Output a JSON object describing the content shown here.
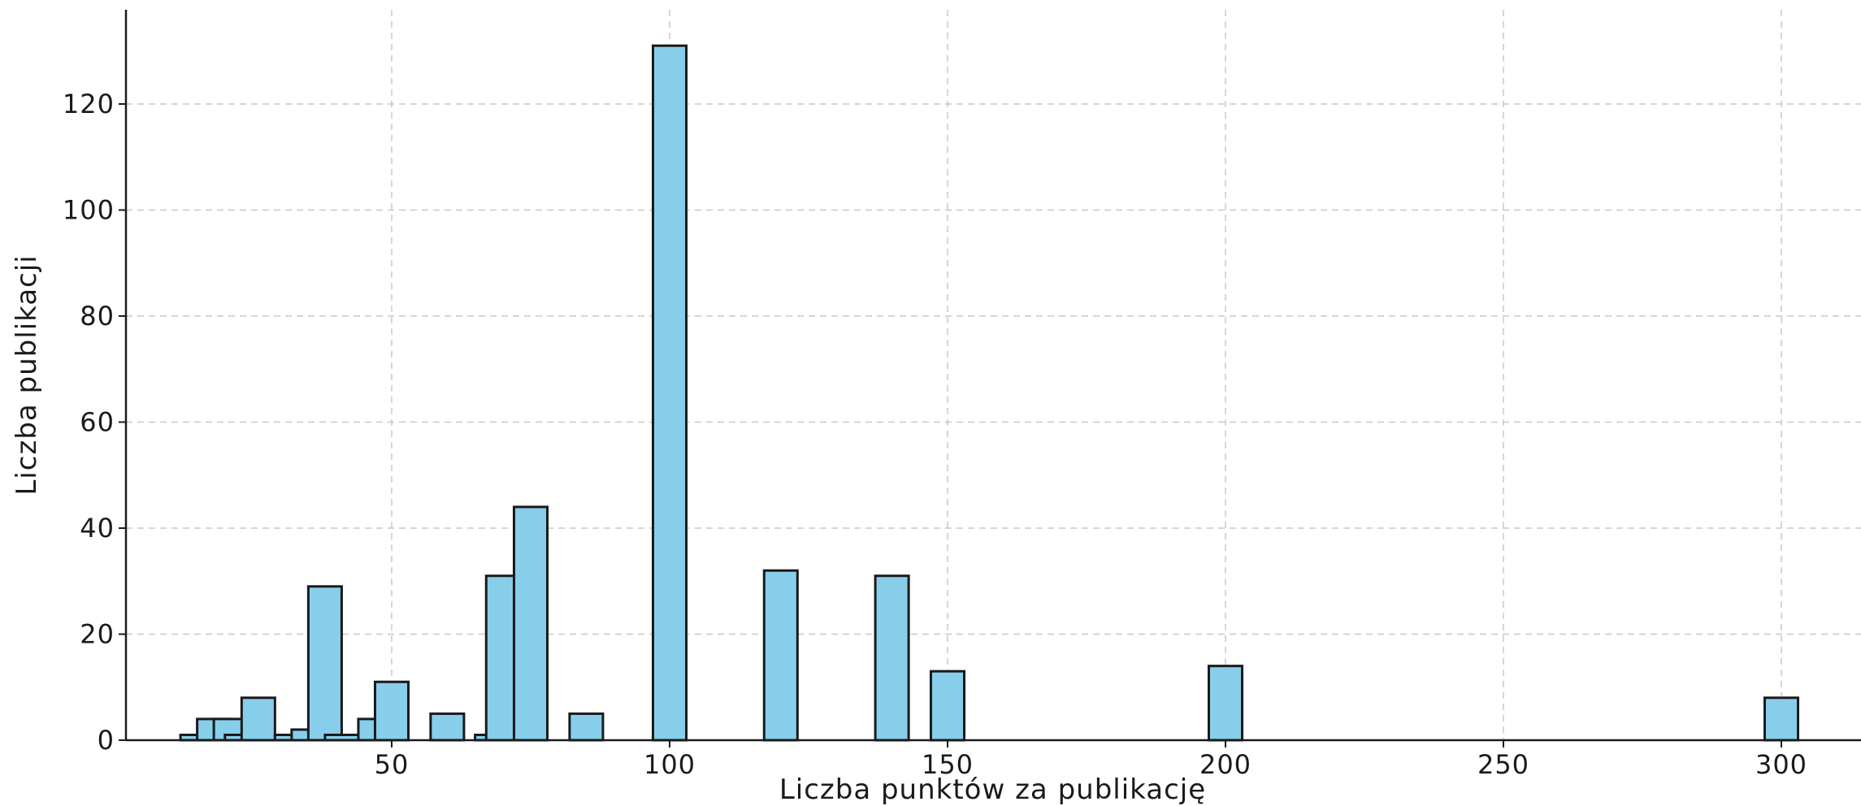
{
  "chart_data": {
    "type": "bar",
    "title": "",
    "xlabel": "Liczba punktów za publikację",
    "ylabel": "Liczba publikacji",
    "xlim": [
      0,
      320
    ],
    "ylim": [
      0,
      138
    ],
    "grid": true,
    "bar_color": "#87CEEB",
    "edge_color": "#1a1a1a",
    "bar_width": 6,
    "x_ticks": [
      50,
      100,
      150,
      200,
      250,
      300
    ],
    "y_ticks": [
      0,
      20,
      40,
      60,
      80,
      100,
      120
    ],
    "bins": [
      {
        "x": 15,
        "value": 1
      },
      {
        "x": 18,
        "value": 4
      },
      {
        "x": 21,
        "value": 4
      },
      {
        "x": 23,
        "value": 1
      },
      {
        "x": 26,
        "value": 8
      },
      {
        "x": 32,
        "value": 1
      },
      {
        "x": 35,
        "value": 2
      },
      {
        "x": 38,
        "value": 29
      },
      {
        "x": 41,
        "value": 1
      },
      {
        "x": 47,
        "value": 4
      },
      {
        "x": 50,
        "value": 11
      },
      {
        "x": 60,
        "value": 5
      },
      {
        "x": 68,
        "value": 1
      },
      {
        "x": 70,
        "value": 31
      },
      {
        "x": 75,
        "value": 44
      },
      {
        "x": 85,
        "value": 5
      },
      {
        "x": 100,
        "value": 131
      },
      {
        "x": 120,
        "value": 32
      },
      {
        "x": 140,
        "value": 31
      },
      {
        "x": 150,
        "value": 13
      },
      {
        "x": 200,
        "value": 14
      },
      {
        "x": 300,
        "value": 8
      }
    ]
  }
}
